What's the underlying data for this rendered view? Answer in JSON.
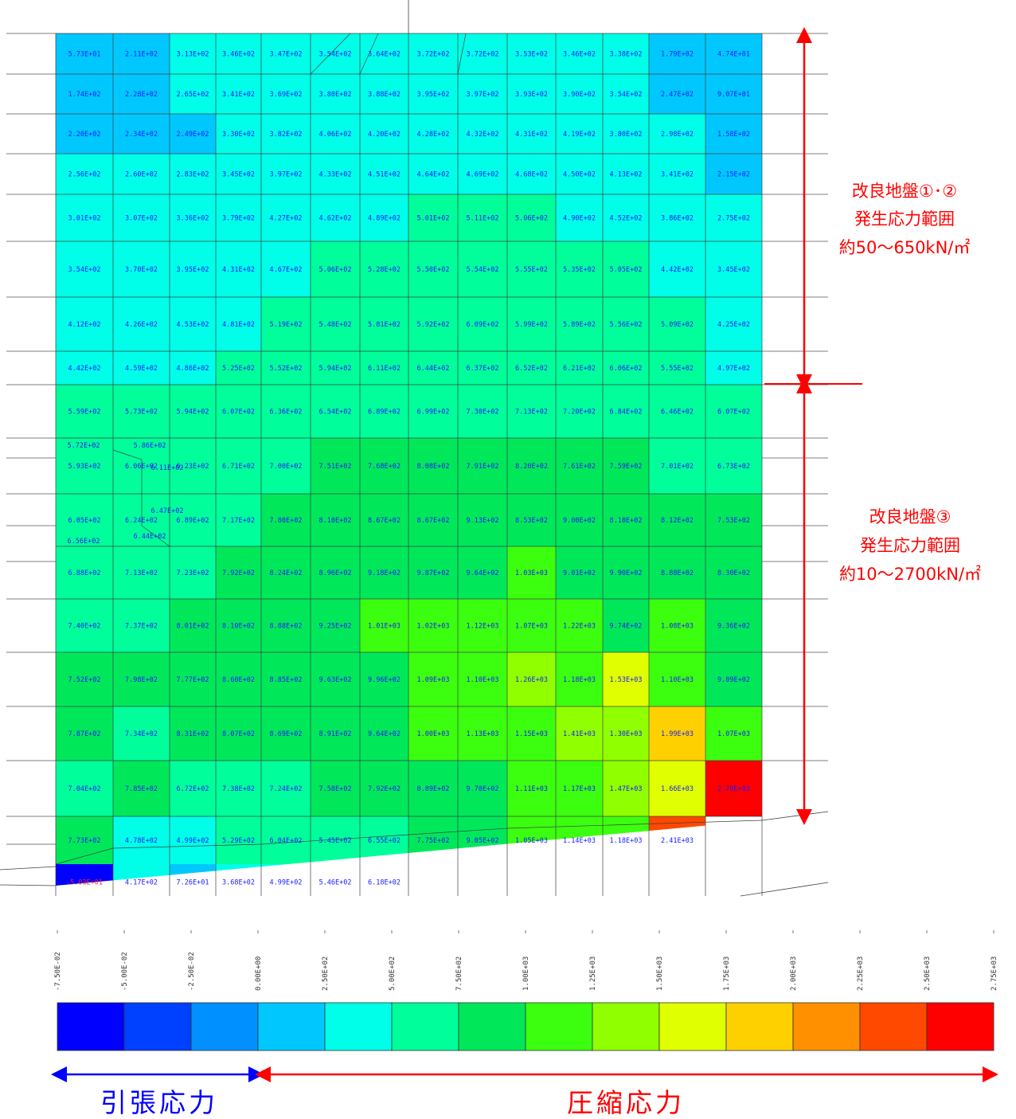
{
  "annotations": {
    "upper": [
      "改良地盤①･②",
      "発生応力範囲",
      "約50～650kN/㎡"
    ],
    "lower": [
      "改良地盤③",
      "発生応力範囲",
      "約10～2700kN/㎡"
    ],
    "tension": "引張応力",
    "compression": "圧縮応力",
    "tension_color": "#0000ff",
    "compression_color": "#ff0000"
  },
  "chart_data": {
    "type": "heatmap",
    "title": "",
    "colorbar": {
      "ticks": [
        "-7.50E-02",
        "-5.00E-02",
        "-2.50E-02",
        "0.00E+00",
        "2.50E+02",
        "5.00E+02",
        "7.50E+02",
        "1.00E+03",
        "1.25E+03",
        "1.50E+03",
        "1.75E+03",
        "2.00E+03",
        "2.25E+03",
        "2.50E+03",
        "2.75E+03"
      ],
      "colors": [
        "#0000ff",
        "#0040ff",
        "#0090ff",
        "#00c8ff",
        "#00ffe8",
        "#00ff9a",
        "#00e85a",
        "#3cff10",
        "#90ff00",
        "#e0ff00",
        "#ffd000",
        "#ff9000",
        "#ff4800",
        "#ff0000"
      ]
    },
    "grid": {
      "rows": [
        [
          [
            "5.73E+01",
            57.3
          ],
          [
            "2.11E+02",
            211
          ],
          [
            "3.13E+02",
            313
          ],
          [
            "3.46E+02",
            346
          ],
          [
            "3.47E+02",
            347
          ],
          [
            "3.54E+02",
            354
          ],
          [
            "3.64E+02",
            364
          ],
          [
            "3.72E+02",
            372
          ],
          [
            "3.72E+02",
            372
          ],
          [
            "3.53E+02",
            353
          ],
          [
            "3.46E+02",
            346
          ],
          [
            "3.38E+02",
            338
          ],
          [
            "1.79E+02",
            179
          ],
          [
            "4.74E+01",
            47.4
          ]
        ],
        [
          [
            "1.74E+02",
            174
          ],
          [
            "2.28E+02",
            228
          ],
          [
            "2.65E+02",
            265
          ],
          [
            "3.41E+02",
            341
          ],
          [
            "3.69E+02",
            369
          ],
          [
            "3.80E+02",
            380
          ],
          [
            "3.88E+02",
            388
          ],
          [
            "3.95E+02",
            395
          ],
          [
            "3.97E+02",
            397
          ],
          [
            "3.93E+02",
            393
          ],
          [
            "3.90E+02",
            390
          ],
          [
            "3.54E+02",
            354
          ],
          [
            "2.47E+02",
            247
          ],
          [
            "9.07E+01",
            90.7
          ]
        ],
        [
          [
            "2.20E+02",
            220
          ],
          [
            "2.34E+02",
            234
          ],
          [
            "2.49E+02",
            249
          ],
          [
            "3.30E+02",
            330
          ],
          [
            "3.82E+02",
            382
          ],
          [
            "4.06E+02",
            406
          ],
          [
            "4.20E+02",
            420
          ],
          [
            "4.28E+02",
            428
          ],
          [
            "4.32E+02",
            432
          ],
          [
            "4.31E+02",
            431
          ],
          [
            "4.19E+02",
            419
          ],
          [
            "3.80E+02",
            380
          ],
          [
            "2.98E+02",
            298
          ],
          [
            "1.58E+02",
            158
          ]
        ],
        [
          [
            "2.56E+02",
            256
          ],
          [
            "2.60E+02",
            260
          ],
          [
            "2.83E+02",
            283
          ],
          [
            "3.45E+02",
            345
          ],
          [
            "3.97E+02",
            397
          ],
          [
            "4.33E+02",
            433
          ],
          [
            "4.51E+02",
            451
          ],
          [
            "4.64E+02",
            464
          ],
          [
            "4.69E+02",
            469
          ],
          [
            "4.68E+02",
            468
          ],
          [
            "4.50E+02",
            450
          ],
          [
            "4.13E+02",
            413
          ],
          [
            "3.41E+02",
            341
          ],
          [
            "2.15E+02",
            215
          ]
        ],
        [
          [
            "3.01E+02",
            301
          ],
          [
            "3.07E+02",
            307
          ],
          [
            "3.36E+02",
            336
          ],
          [
            "3.79E+02",
            379
          ],
          [
            "4.27E+02",
            427
          ],
          [
            "4.62E+02",
            462
          ],
          [
            "4.89E+02",
            489
          ],
          [
            "5.01E+02",
            501
          ],
          [
            "5.11E+02",
            511
          ],
          [
            "5.06E+02",
            506
          ],
          [
            "4.90E+02",
            490
          ],
          [
            "4.52E+02",
            452
          ],
          [
            "3.86E+02",
            386
          ],
          [
            "2.75E+02",
            275
          ]
        ],
        [
          [
            "3.54E+02",
            354
          ],
          [
            "3.70E+02",
            370
          ],
          [
            "3.95E+02",
            395
          ],
          [
            "4.31E+02",
            431
          ],
          [
            "4.67E+02",
            467
          ],
          [
            "5.06E+02",
            506
          ],
          [
            "5.28E+02",
            528
          ],
          [
            "5.50E+02",
            550
          ],
          [
            "5.54E+02",
            554
          ],
          [
            "5.55E+02",
            555
          ],
          [
            "5.35E+02",
            535
          ],
          [
            "5.05E+02",
            505
          ],
          [
            "4.42E+02",
            442
          ],
          [
            "3.45E+02",
            345
          ]
        ],
        [
          [
            "4.12E+02",
            412
          ],
          [
            "4.26E+02",
            426
          ],
          [
            "4.53E+02",
            453
          ],
          [
            "4.81E+02",
            481
          ],
          [
            "5.19E+02",
            519
          ],
          [
            "5.48E+02",
            548
          ],
          [
            "5.81E+02",
            581
          ],
          [
            "5.92E+02",
            592
          ],
          [
            "6.09E+02",
            609
          ],
          [
            "5.99E+02",
            599
          ],
          [
            "5.89E+02",
            589
          ],
          [
            "5.56E+02",
            556
          ],
          [
            "5.09E+02",
            509
          ],
          [
            "4.25E+02",
            425
          ]
        ],
        [
          [
            "4.42E+02",
            442
          ],
          [
            "4.59E+02",
            459
          ],
          [
            "4.86E+02",
            486
          ],
          [
            "5.25E+02",
            525
          ],
          [
            "5.52E+02",
            552
          ],
          [
            "5.94E+02",
            594
          ],
          [
            "6.11E+02",
            611
          ],
          [
            "6.44E+02",
            644
          ],
          [
            "6.37E+02",
            637
          ],
          [
            "6.52E+02",
            652
          ],
          [
            "6.21E+02",
            621
          ],
          [
            "6.06E+02",
            606
          ],
          [
            "5.55E+02",
            555
          ],
          [
            "4.97E+02",
            497
          ]
        ],
        [
          [
            "5.59E+02",
            559
          ],
          [
            "5.73E+02",
            573
          ],
          [
            "5.94E+02",
            594
          ],
          [
            "6.07E+02",
            607
          ],
          [
            "6.36E+02",
            636
          ],
          [
            "6.54E+02",
            654
          ],
          [
            "6.89E+02",
            689
          ],
          [
            "6.99E+02",
            699
          ],
          [
            "7.30E+02",
            730
          ],
          [
            "7.13E+02",
            713
          ],
          [
            "7.20E+02",
            720
          ],
          [
            "6.84E+02",
            684
          ],
          [
            "6.46E+02",
            646
          ],
          [
            "6.07E+02",
            607
          ]
        ],
        [
          [
            "5.93E+02",
            593
          ],
          [
            "6.06E+02",
            606
          ],
          [
            "6.23E+02",
            623
          ],
          [
            "6.71E+02",
            671
          ],
          [
            "7.00E+02",
            700
          ],
          [
            "7.51E+02",
            751
          ],
          [
            "7.68E+02",
            768
          ],
          [
            "8.08E+02",
            808
          ],
          [
            "7.91E+02",
            791
          ],
          [
            "8.20E+02",
            820
          ],
          [
            "7.61E+02",
            761
          ],
          [
            "7.59E+02",
            759
          ],
          [
            "7.01E+02",
            701
          ],
          [
            "6.73E+02",
            673
          ]
        ],
        [
          [
            "6.05E+02",
            605
          ],
          [
            "6.24E+02",
            624
          ],
          [
            "6.89E+02",
            689
          ],
          [
            "7.17E+02",
            717
          ],
          [
            "7.80E+02",
            780
          ],
          [
            "8.10E+02",
            810
          ],
          [
            "8.67E+02",
            867
          ],
          [
            "8.67E+02",
            867
          ],
          [
            "9.13E+02",
            913
          ],
          [
            "8.53E+02",
            853
          ],
          [
            "9.00E+02",
            900
          ],
          [
            "8.10E+02",
            810
          ],
          [
            "8.12E+02",
            812
          ],
          [
            "7.53E+02",
            753
          ]
        ],
        [
          [
            "6.88E+02",
            688
          ],
          [
            "7.13E+02",
            713
          ],
          [
            "7.23E+02",
            723
          ],
          [
            "7.92E+02",
            792
          ],
          [
            "8.24E+02",
            824
          ],
          [
            "8.96E+02",
            896
          ],
          [
            "9.18E+02",
            918
          ],
          [
            "9.87E+02",
            987
          ],
          [
            "9.64E+02",
            964
          ],
          [
            "1.03E+03",
            1030
          ],
          [
            "9.01E+02",
            901
          ],
          [
            "9.90E+02",
            990
          ],
          [
            "8.88E+02",
            888
          ],
          [
            "8.30E+02",
            830
          ]
        ],
        [
          [
            "7.40E+02",
            740
          ],
          [
            "7.37E+02",
            737
          ],
          [
            "8.01E+02",
            801
          ],
          [
            "8.10E+02",
            810
          ],
          [
            "8.88E+02",
            888
          ],
          [
            "9.25E+02",
            925
          ],
          [
            "1.01E+03",
            1010
          ],
          [
            "1.02E+03",
            1020
          ],
          [
            "1.12E+03",
            1120
          ],
          [
            "1.07E+03",
            1070
          ],
          [
            "1.22E+03",
            1220
          ],
          [
            "9.74E+02",
            974
          ],
          [
            "1.08E+03",
            1080
          ],
          [
            "9.36E+02",
            936
          ]
        ],
        [
          [
            "7.52E+02",
            752
          ],
          [
            "7.98E+02",
            798
          ],
          [
            "7.77E+02",
            777
          ],
          [
            "8.60E+02",
            860
          ],
          [
            "8.85E+02",
            885
          ],
          [
            "9.63E+02",
            963
          ],
          [
            "9.96E+02",
            996
          ],
          [
            "1.09E+03",
            1090
          ],
          [
            "1.10E+03",
            1100
          ],
          [
            "1.26E+03",
            1260
          ],
          [
            "1.18E+03",
            1180
          ],
          [
            "1.53E+03",
            1530
          ],
          [
            "1.10E+03",
            1100
          ],
          [
            "9.09E+02",
            909
          ]
        ],
        [
          [
            "7.87E+02",
            787
          ],
          [
            "7.34E+02",
            734
          ],
          [
            "8.31E+02",
            831
          ],
          [
            "8.07E+02",
            807
          ],
          [
            "8.69E+02",
            869
          ],
          [
            "8.91E+02",
            891
          ],
          [
            "9.64E+02",
            964
          ],
          [
            "1.00E+03",
            1000
          ],
          [
            "1.13E+03",
            1130
          ],
          [
            "1.15E+03",
            1150
          ],
          [
            "1.41E+03",
            1410
          ],
          [
            "1.30E+03",
            1300
          ],
          [
            "1.99E+03",
            1990
          ],
          [
            "1.07E+03",
            1070
          ]
        ],
        [
          [
            "7.04E+02",
            704
          ],
          [
            "7.85E+02",
            785
          ],
          [
            "6.72E+02",
            672
          ],
          [
            "7.38E+02",
            738
          ],
          [
            "7.24E+02",
            724
          ],
          [
            "7.58E+02",
            758
          ],
          [
            "7.92E+02",
            792
          ],
          [
            "8.89E+02",
            889
          ],
          [
            "9.70E+02",
            970
          ],
          [
            "1.11E+03",
            1110
          ],
          [
            "1.17E+03",
            1170
          ],
          [
            "1.47E+03",
            1470
          ],
          [
            "1.66E+03",
            1660
          ],
          [
            "2.70E+03",
            2700
          ]
        ],
        [
          [
            "7.73E+02",
            773
          ],
          [
            "4.78E+02",
            478
          ],
          [
            "4.99E+02",
            499
          ],
          [
            "5.29E+02",
            529
          ],
          [
            "6.04E+02",
            604
          ],
          [
            "5.45E+02",
            545
          ],
          [
            "6.55E+02",
            655
          ],
          [
            "7.75E+02",
            775
          ],
          [
            "9.05E+02",
            905
          ],
          [
            "1.05E+03",
            1050
          ],
          [
            "1.14E+03",
            1140
          ],
          [
            "1.18E+03",
            1180
          ],
          [
            "2.41E+03",
            2410
          ],
          null
        ],
        [
          [
            "-5.03E+01",
            -50.3
          ],
          [
            "4.17E+02",
            417
          ],
          [
            "7.26E+01",
            72.6
          ],
          [
            "3.68E+02",
            368
          ],
          [
            "4.99E+02",
            499
          ],
          [
            "5.46E+02",
            546
          ],
          [
            "6.18E+02",
            618
          ],
          null,
          null,
          null,
          null,
          null,
          null,
          null
        ]
      ],
      "extra_labels": [
        [
          "5.72E+02",
          572
        ],
        [
          "5.86E+02",
          586
        ],
        [
          "6.11E+02",
          611
        ],
        [
          "6.47E+02",
          647
        ],
        [
          "6.56E+02",
          656
        ],
        [
          "6.44E+02",
          644
        ]
      ]
    }
  }
}
